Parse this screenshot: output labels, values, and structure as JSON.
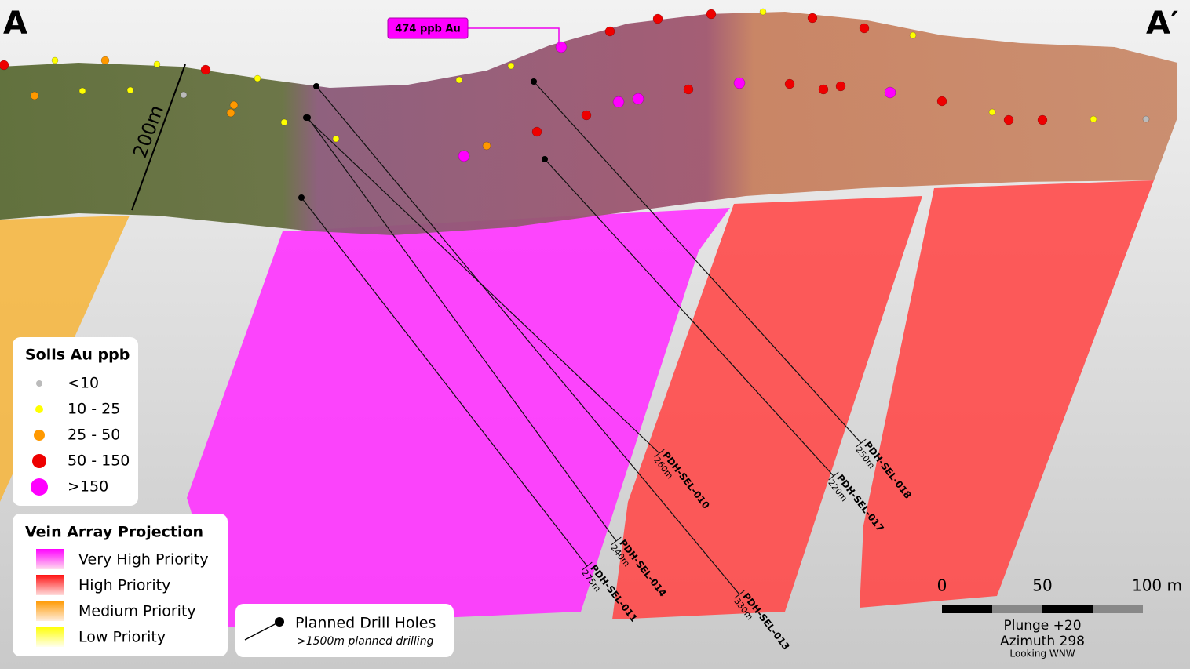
{
  "section": {
    "start_label": "A",
    "end_label": "A′",
    "callout": "474 ppb Au",
    "thickness_label": "200m"
  },
  "soils_legend": {
    "title": "Soils Au ppb",
    "items": [
      "<10",
      "10 - 25",
      "25 - 50",
      "50 - 150",
      ">150"
    ]
  },
  "vein_legend": {
    "title": "Vein Array Projection",
    "items": [
      "Very High Priority",
      "High Priority",
      "Medium Priority",
      "Low Priority"
    ]
  },
  "drill_legend": {
    "title": "Planned Drill Holes",
    "subtitle": ">1500m planned drilling"
  },
  "drill_holes": [
    {
      "id": "PDH-SEL-010",
      "depth": "260m"
    },
    {
      "id": "PDH-SEL-014",
      "depth": "240m"
    },
    {
      "id": "PDH-SEL-011",
      "depth": "275m"
    },
    {
      "id": "PDH-SEL-013",
      "depth": "330m"
    },
    {
      "id": "PDH-SEL-017",
      "depth": "220m"
    },
    {
      "id": "PDH-SEL-018",
      "depth": "250m"
    }
  ],
  "scale_bar": {
    "ticks": [
      "0",
      "50",
      "100 m"
    ],
    "plunge": "Plunge +20",
    "azimuth": "Azimuth 298",
    "looking": "Looking WNW"
  }
}
